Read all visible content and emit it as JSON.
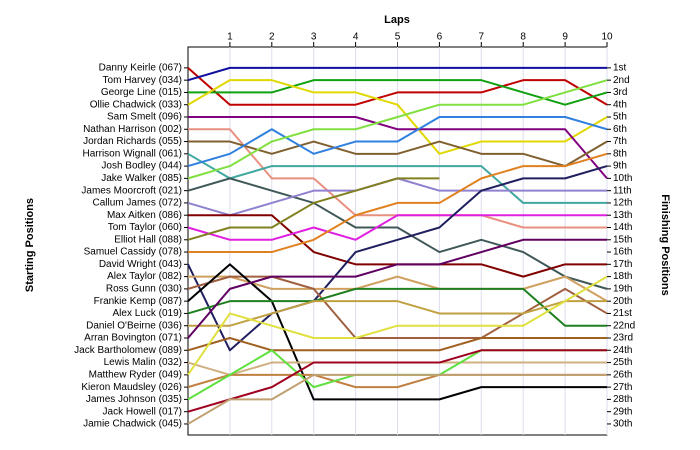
{
  "chart_data": {
    "type": "line",
    "x_label": "Laps",
    "y_label": "Starting Positions",
    "y2_label": "Finishing Positions",
    "x": [
      0,
      1,
      2,
      3,
      4,
      5,
      6,
      7,
      8,
      9,
      10
    ],
    "xlim": [
      0,
      10
    ],
    "xticks": [
      1,
      2,
      3,
      4,
      5,
      6,
      7,
      8,
      9,
      10
    ],
    "ylim": [
      30.9,
      -0.7
    ],
    "y2lim": [
      30.9,
      -0.7
    ],
    "grid": true,
    "yticks": [
      {
        "value": 1,
        "label": "Danny Keirle (067)"
      },
      {
        "value": 2,
        "label": "Tom Harvey (034)"
      },
      {
        "value": 3,
        "label": "George Line (015)"
      },
      {
        "value": 4,
        "label": "Ollie Chadwick (033)"
      },
      {
        "value": 5,
        "label": "Sam Smelt (096)"
      },
      {
        "value": 6,
        "label": "Nathan Harrison (002)"
      },
      {
        "value": 7,
        "label": "Jordan Richards (055)"
      },
      {
        "value": 8,
        "label": "Harrison Wignall (061)"
      },
      {
        "value": 9,
        "label": "Josh Bodley (044)"
      },
      {
        "value": 10,
        "label": "Jake Walker (085)"
      },
      {
        "value": 11,
        "label": "James Moorcroft (021)"
      },
      {
        "value": 12,
        "label": "Callum James (072)"
      },
      {
        "value": 13,
        "label": "Max Aitken (086)"
      },
      {
        "value": 14,
        "label": "Tom Taylor (060)"
      },
      {
        "value": 15,
        "label": "Elliot Hall (088)"
      },
      {
        "value": 16,
        "label": "Samuel Cassidy (078)"
      },
      {
        "value": 17,
        "label": "David Wright (043)"
      },
      {
        "value": 18,
        "label": "Alex Taylor (082)"
      },
      {
        "value": 19,
        "label": "Ross Gunn (030)"
      },
      {
        "value": 20,
        "label": "Frankie Kemp (087)"
      },
      {
        "value": 21,
        "label": "Alex Luck (019)"
      },
      {
        "value": 22,
        "label": "Daniel O'Beirne (036)"
      },
      {
        "value": 23,
        "label": "Arran Bovington (071)"
      },
      {
        "value": 24,
        "label": "Jack Bartholomew (089)"
      },
      {
        "value": 25,
        "label": "Lewis Malin (032)"
      },
      {
        "value": 26,
        "label": "Matthew Ryder (049)"
      },
      {
        "value": 27,
        "label": "Kieron Maudsley (026)"
      },
      {
        "value": 28,
        "label": "James Johnson (035)"
      },
      {
        "value": 29,
        "label": "Jack Howell (017)"
      },
      {
        "value": 30,
        "label": "Jamie Chadwick (045)"
      }
    ],
    "y2ticks": [
      {
        "value": 1,
        "label": "1st"
      },
      {
        "value": 2,
        "label": "2nd"
      },
      {
        "value": 3,
        "label": "3rd"
      },
      {
        "value": 4,
        "label": "4th"
      },
      {
        "value": 5,
        "label": "5th"
      },
      {
        "value": 6,
        "label": "6th"
      },
      {
        "value": 7,
        "label": "7th"
      },
      {
        "value": 8,
        "label": "8th"
      },
      {
        "value": 9,
        "label": "9th"
      },
      {
        "value": 10,
        "label": "10th"
      },
      {
        "value": 11,
        "label": "11th"
      },
      {
        "value": 12,
        "label": "12th"
      },
      {
        "value": 13,
        "label": "13th"
      },
      {
        "value": 14,
        "label": "14th"
      },
      {
        "value": 15,
        "label": "15th"
      },
      {
        "value": 16,
        "label": "16th"
      },
      {
        "value": 17,
        "label": "17th"
      },
      {
        "value": 18,
        "label": "18th"
      },
      {
        "value": 19,
        "label": "19th"
      },
      {
        "value": 20,
        "label": "20th"
      },
      {
        "value": 21,
        "label": "21st"
      },
      {
        "value": 22,
        "label": "22nd"
      },
      {
        "value": 23,
        "label": "23rd"
      },
      {
        "value": 24,
        "label": "24th"
      },
      {
        "value": 25,
        "label": "25th"
      },
      {
        "value": 26,
        "label": "26th"
      },
      {
        "value": 27,
        "label": "27th"
      },
      {
        "value": 28,
        "label": "28th"
      },
      {
        "value": 29,
        "label": "29th"
      },
      {
        "value": 30,
        "label": "30th"
      }
    ],
    "series": [
      {
        "name": "Danny Keirle (067)",
        "color": "#c00000",
        "values": [
          1,
          4,
          4,
          4,
          4,
          3,
          3,
          3,
          2,
          2,
          4
        ]
      },
      {
        "name": "Tom Harvey (034)",
        "color": "#1010a0",
        "values": [
          2,
          1,
          1,
          1,
          1,
          1,
          1,
          1,
          1,
          1,
          1
        ]
      },
      {
        "name": "George Line (015)",
        "color": "#10a010",
        "values": [
          3,
          3,
          3,
          2,
          2,
          2,
          2,
          2,
          3,
          4,
          3
        ]
      },
      {
        "name": "Ollie Chadwick (033)",
        "color": "#e0d800",
        "values": [
          4,
          2,
          2,
          3,
          3,
          4,
          8,
          7,
          7,
          7,
          5
        ]
      },
      {
        "name": "Sam Smelt (096)",
        "color": "#800080",
        "values": [
          5,
          5,
          5,
          5,
          5,
          6,
          6,
          6,
          6,
          6,
          10
        ]
      },
      {
        "name": "Nathan Harrison (002)",
        "color": "#e89080",
        "values": [
          6,
          6,
          10,
          10,
          13,
          13,
          13,
          13,
          14,
          14,
          14
        ]
      },
      {
        "name": "Jordan Richards (055)",
        "color": "#806030",
        "values": [
          7,
          7,
          8,
          7,
          8,
          8,
          7,
          8,
          8,
          9,
          7
        ]
      },
      {
        "name": "Harrison Wignall (061)",
        "color": "#40a8a0",
        "values": [
          8,
          10,
          9,
          9,
          9,
          9,
          9,
          9,
          12,
          12,
          12
        ]
      },
      {
        "name": "Josh Bodley (044)",
        "color": "#3080e0",
        "values": [
          9,
          8,
          6,
          8,
          7,
          7,
          5,
          5,
          5,
          5,
          6
        ]
      },
      {
        "name": "Jake Walker (085)",
        "color": "#80e040",
        "values": [
          10,
          9,
          7,
          6,
          6,
          5,
          4,
          4,
          4,
          3,
          2
        ]
      },
      {
        "name": "James Moorcroft (021)",
        "color": "#405858",
        "values": [
          11,
          10,
          11,
          12,
          14,
          14,
          16,
          15,
          16,
          18,
          19
        ]
      },
      {
        "name": "Callum James (072)",
        "color": "#9080d0",
        "values": [
          12,
          13,
          12,
          11,
          11,
          10,
          11,
          11,
          11,
          11,
          11
        ]
      },
      {
        "name": "Max Aitken (086)",
        "color": "#800000",
        "values": [
          13,
          13,
          13,
          16,
          17,
          17,
          17,
          17,
          18,
          17,
          17
        ]
      },
      {
        "name": "Tom Taylor (060)",
        "color": "#e020e0",
        "values": [
          14,
          15,
          15,
          14,
          15,
          13,
          13,
          13,
          13,
          13,
          13
        ]
      },
      {
        "name": "Elliot Hall (088)",
        "color": "#808020",
        "values": [
          15,
          14,
          14,
          12,
          11,
          10,
          10,
          null,
          null,
          null,
          null
        ]
      },
      {
        "name": "Samuel Cassidy (078)",
        "color": "#e08020",
        "values": [
          16,
          16,
          16,
          15,
          13,
          12,
          12,
          10,
          9,
          9,
          8
        ]
      },
      {
        "name": "David Wright (043)",
        "color": "#202060",
        "values": [
          17,
          24,
          21,
          20,
          16,
          15,
          14,
          11,
          10,
          10,
          9
        ]
      },
      {
        "name": "Alex Taylor (082)",
        "color": "#d0a060",
        "values": [
          18,
          18,
          19,
          19,
          19,
          18,
          19,
          19,
          19,
          18,
          20
        ]
      },
      {
        "name": "Ross Gunn (030)",
        "color": "#a06040",
        "values": [
          19,
          18,
          18,
          19,
          23,
          23,
          23,
          23,
          21,
          19,
          21
        ]
      },
      {
        "name": "Frankie Kemp (087)",
        "color": "#000000",
        "values": [
          20,
          17,
          20,
          28,
          28,
          28,
          28,
          27,
          27,
          27,
          27
        ]
      },
      {
        "name": "Alex Luck (019)",
        "color": "#208020",
        "values": [
          21,
          20,
          20,
          20,
          19,
          19,
          19,
          19,
          19,
          22,
          22
        ]
      },
      {
        "name": "Daniel O'Beirne (036)",
        "color": "#c0a040",
        "values": [
          22,
          22,
          21,
          20,
          20,
          20,
          21,
          21,
          21,
          20,
          20
        ]
      },
      {
        "name": "Arran Bovington (071)",
        "color": "#600060",
        "values": [
          23,
          19,
          18,
          18,
          18,
          17,
          17,
          16,
          15,
          15,
          15
        ]
      },
      {
        "name": "Jack Bartholomew (089)",
        "color": "#a06020",
        "values": [
          24,
          23,
          24,
          24,
          24,
          24,
          24,
          23,
          23,
          23,
          23
        ]
      },
      {
        "name": "Lewis Malin (032)",
        "color": "#d0b080",
        "values": [
          25,
          26,
          25,
          25,
          25,
          25,
          25,
          25,
          25,
          25,
          25
        ]
      },
      {
        "name": "Matthew Ryder (049)",
        "color": "#e0e040",
        "values": [
          26,
          21,
          22,
          23,
          23,
          22,
          22,
          22,
          22,
          20,
          18
        ]
      },
      {
        "name": "Kieron Maudsley (026)",
        "color": "#c08040",
        "values": [
          27,
          26,
          26,
          26,
          27,
          27,
          26,
          26,
          26,
          26,
          26
        ]
      },
      {
        "name": "James Johnson (035)",
        "color": "#60e040",
        "values": [
          28,
          26,
          24,
          27,
          26,
          26,
          26,
          24,
          24,
          24,
          24
        ]
      },
      {
        "name": "Jack Howell (017)",
        "color": "#a00020",
        "values": [
          29,
          28,
          27,
          25,
          25,
          25,
          25,
          24,
          24,
          24,
          24
        ]
      },
      {
        "name": "Jamie Chadwick (045)",
        "color": "#c0a070",
        "values": [
          30,
          28,
          28,
          26,
          26,
          26,
          26,
          26,
          26,
          26,
          26
        ]
      }
    ]
  }
}
